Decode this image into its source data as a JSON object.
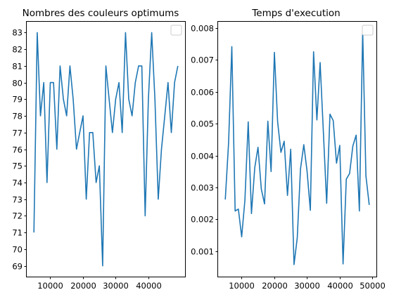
{
  "chart_data": [
    {
      "type": "line",
      "title": "Nombres des couleurs optimums",
      "xlabel": "",
      "ylabel": "",
      "xlim": [
        2800,
        51200
      ],
      "ylim": [
        68.35,
        83.65
      ],
      "xticks": [
        10000,
        20000,
        30000,
        40000
      ],
      "xtick_labels": [
        "10000",
        "20000",
        "30000",
        "40000"
      ],
      "yticks": [
        69,
        70,
        71,
        72,
        73,
        74,
        75,
        76,
        77,
        78,
        79,
        80,
        81,
        82,
        83
      ],
      "ytick_labels": [
        "69",
        "70",
        "71",
        "72",
        "73",
        "74",
        "75",
        "76",
        "77",
        "78",
        "79",
        "80",
        "81",
        "82",
        "83"
      ],
      "legend": "top-right (empty)",
      "grid": false,
      "color": "#1f77b4",
      "series": [
        {
          "x": [
            5000,
            6000,
            7000,
            8000,
            9000,
            10000,
            11000,
            12000,
            13000,
            14000,
            15000,
            16000,
            17000,
            18000,
            19000,
            20000,
            21000,
            22000,
            23000,
            24000,
            25000,
            26000,
            27000,
            28000,
            29000,
            30000,
            31000,
            32000,
            33000,
            34000,
            35000,
            36000,
            37000,
            38000,
            39000,
            40000,
            41000,
            42000,
            43000,
            44000,
            45000,
            46000,
            47000,
            48000,
            49000
          ],
          "values": [
            71,
            83,
            78,
            80,
            74,
            80,
            80,
            76,
            81,
            79,
            78,
            81,
            79,
            76,
            77,
            78,
            73,
            77,
            77,
            74,
            75,
            69,
            81,
            79,
            77,
            79,
            80,
            77,
            83,
            79,
            78,
            80,
            81,
            81,
            72,
            79,
            83,
            79,
            73,
            76,
            78,
            80,
            77,
            80,
            81
          ]
        }
      ]
    },
    {
      "type": "line",
      "title": "Temps d'execution",
      "xlabel": "",
      "ylabel": "",
      "xlim": [
        2800,
        51200
      ],
      "ylim": [
        0.0002,
        0.0082
      ],
      "xticks": [
        10000,
        20000,
        30000,
        40000,
        50000
      ],
      "xtick_labels": [
        "10000",
        "20000",
        "30000",
        "40000",
        "50000"
      ],
      "yticks": [
        0.001,
        0.002,
        0.003,
        0.004,
        0.005,
        0.006,
        0.007,
        0.008
      ],
      "ytick_labels": [
        "0.001",
        "0.002",
        "0.003",
        "0.004",
        "0.005",
        "0.006",
        "0.007",
        "0.008"
      ],
      "legend": "top-right (empty)",
      "grid": false,
      "color": "#1f77b4",
      "series": [
        {
          "x": [
            5000,
            6000,
            7000,
            8000,
            9000,
            10000,
            11000,
            12000,
            13000,
            14000,
            15000,
            16000,
            17000,
            18000,
            19000,
            20000,
            21000,
            22000,
            23000,
            24000,
            25000,
            26000,
            27000,
            28000,
            29000,
            30000,
            31000,
            32000,
            33000,
            34000,
            35000,
            36000,
            37000,
            38000,
            39000,
            40000,
            41000,
            42000,
            43000,
            44000,
            45000,
            46000,
            47000,
            48000,
            49000
          ],
          "values": [
            0.00262,
            0.0044,
            0.00742,
            0.00226,
            0.00232,
            0.00145,
            0.0026,
            0.00506,
            0.00218,
            0.00362,
            0.00426,
            0.00295,
            0.00248,
            0.00508,
            0.0035,
            0.00724,
            0.00506,
            0.0041,
            0.00445,
            0.00275,
            0.0042,
            0.00058,
            0.00142,
            0.00358,
            0.00434,
            0.00352,
            0.00228,
            0.00726,
            0.00512,
            0.00692,
            0.0047,
            0.0025,
            0.0053,
            0.0051,
            0.00376,
            0.00432,
            0.0006,
            0.00326,
            0.00344,
            0.0043,
            0.00464,
            0.00226,
            0.0079,
            0.00336,
            0.00245
          ]
        }
      ]
    }
  ]
}
